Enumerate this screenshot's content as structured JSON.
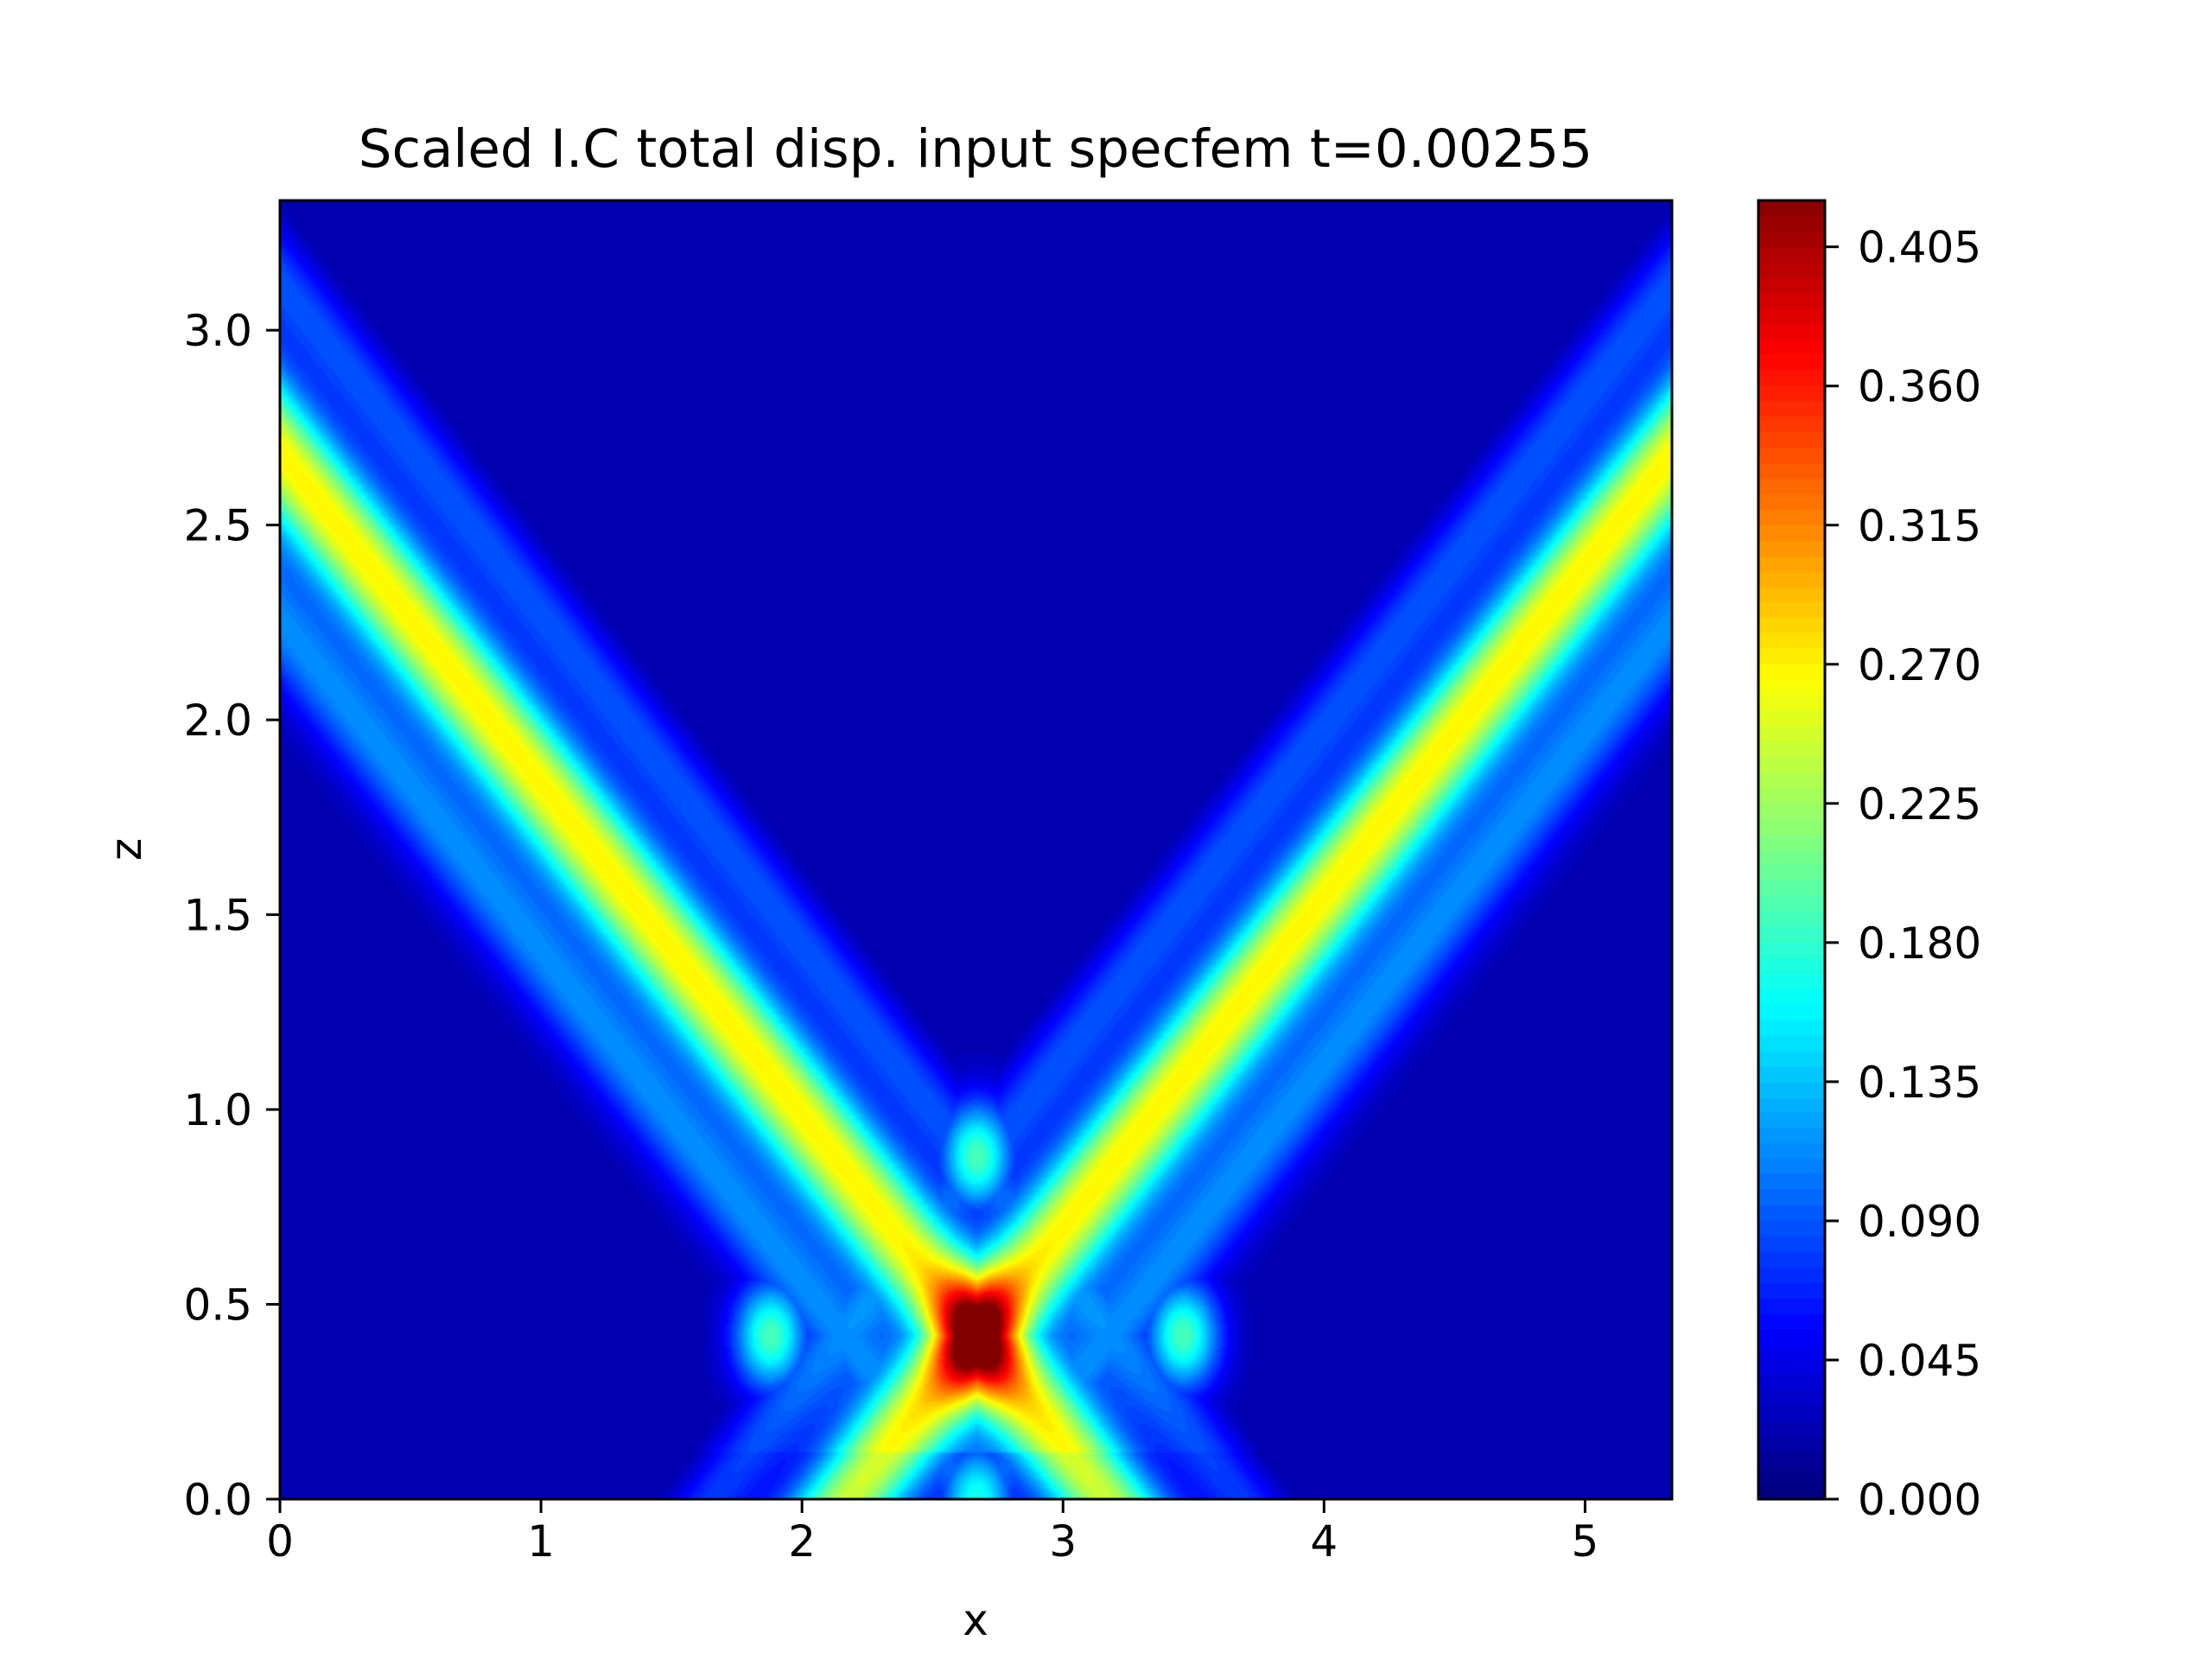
{
  "chart_data": {
    "type": "heatmap",
    "title": "Scaled I.C total disp. input specfem t=0.00255",
    "xlabel": "x",
    "ylabel": "z",
    "xlim": [
      0,
      5.333
    ],
    "ylim": [
      0,
      3.333
    ],
    "x_ticks": [
      0,
      1,
      2,
      3,
      4,
      5
    ],
    "x_tick_labels": [
      "0",
      "1",
      "2",
      "3",
      "4",
      "5"
    ],
    "y_ticks": [
      0.0,
      0.5,
      1.0,
      1.5,
      2.0,
      2.5,
      3.0
    ],
    "y_tick_labels": [
      "0.0",
      "0.5",
      "1.0",
      "1.5",
      "2.0",
      "2.5",
      "3.0"
    ],
    "colormap": "jet",
    "colorbar": {
      "min": 0.0,
      "max": 0.42,
      "ticks": [
        0.0,
        0.045,
        0.09,
        0.135,
        0.18,
        0.225,
        0.27,
        0.315,
        0.36,
        0.405
      ],
      "tick_labels": [
        "0.000",
        "0.045",
        "0.090",
        "0.135",
        "0.180",
        "0.225",
        "0.270",
        "0.315",
        "0.360",
        "0.405"
      ]
    },
    "field": {
      "source_center": [
        2.67,
        0.42
      ],
      "peak_value": 0.42,
      "diagonal_bands": [
        {
          "slope": -0.85,
          "value": 0.23
        },
        {
          "slope": 0.85,
          "value": 0.23
        }
      ],
      "side_lobes": [
        {
          "x": 1.88,
          "z": 0.42,
          "value": 0.17
        },
        {
          "x": 3.46,
          "z": 0.42,
          "value": 0.17
        },
        {
          "x": 2.67,
          "z": 0.88,
          "value": 0.17
        },
        {
          "x": 2.67,
          "z": 0.0,
          "value": 0.15
        }
      ]
    }
  }
}
